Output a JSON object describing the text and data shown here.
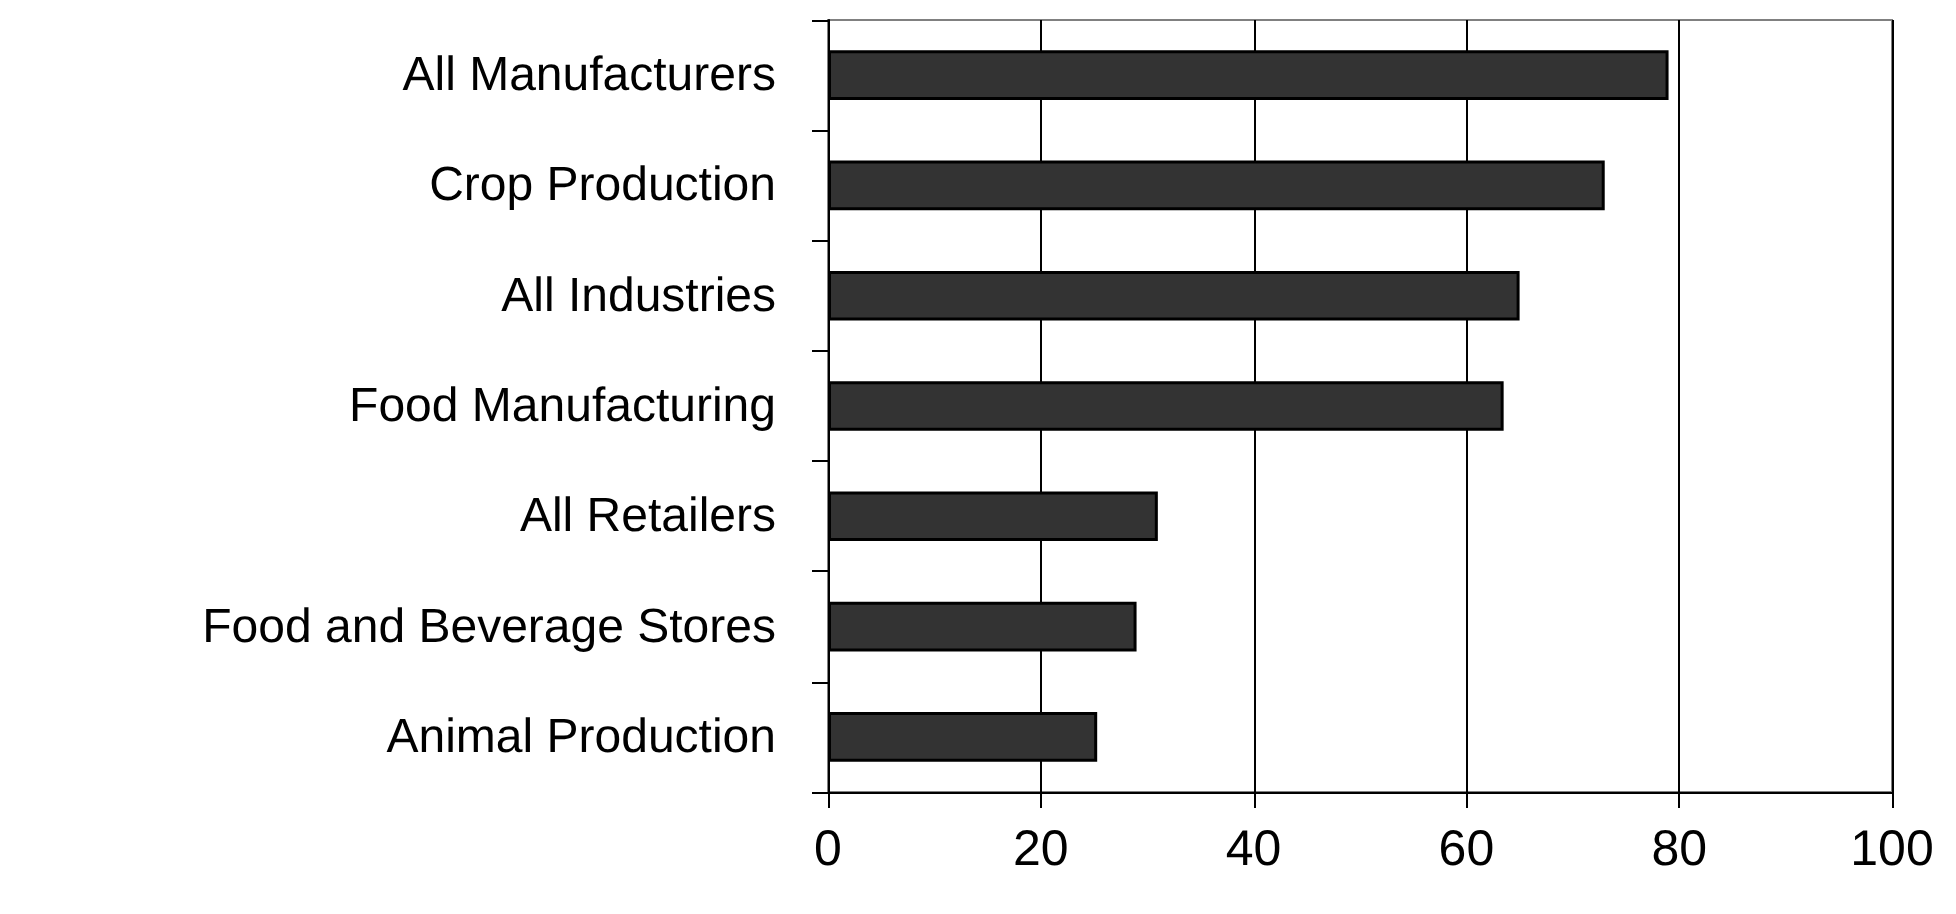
{
  "chart_data": {
    "type": "bar",
    "orientation": "horizontal",
    "categories": [
      "All Manufacturers",
      "Crop Production",
      "All Industries",
      "Food Manufacturing",
      "All Retailers",
      "Food and Beverage Stores",
      "Animal Production"
    ],
    "values": [
      79,
      73,
      65,
      63.5,
      31,
      29,
      25.3
    ],
    "color": "#333333",
    "xlim": [
      0,
      100
    ],
    "xticks": [
      0,
      20,
      40,
      60,
      80,
      100
    ],
    "grid": "x"
  }
}
